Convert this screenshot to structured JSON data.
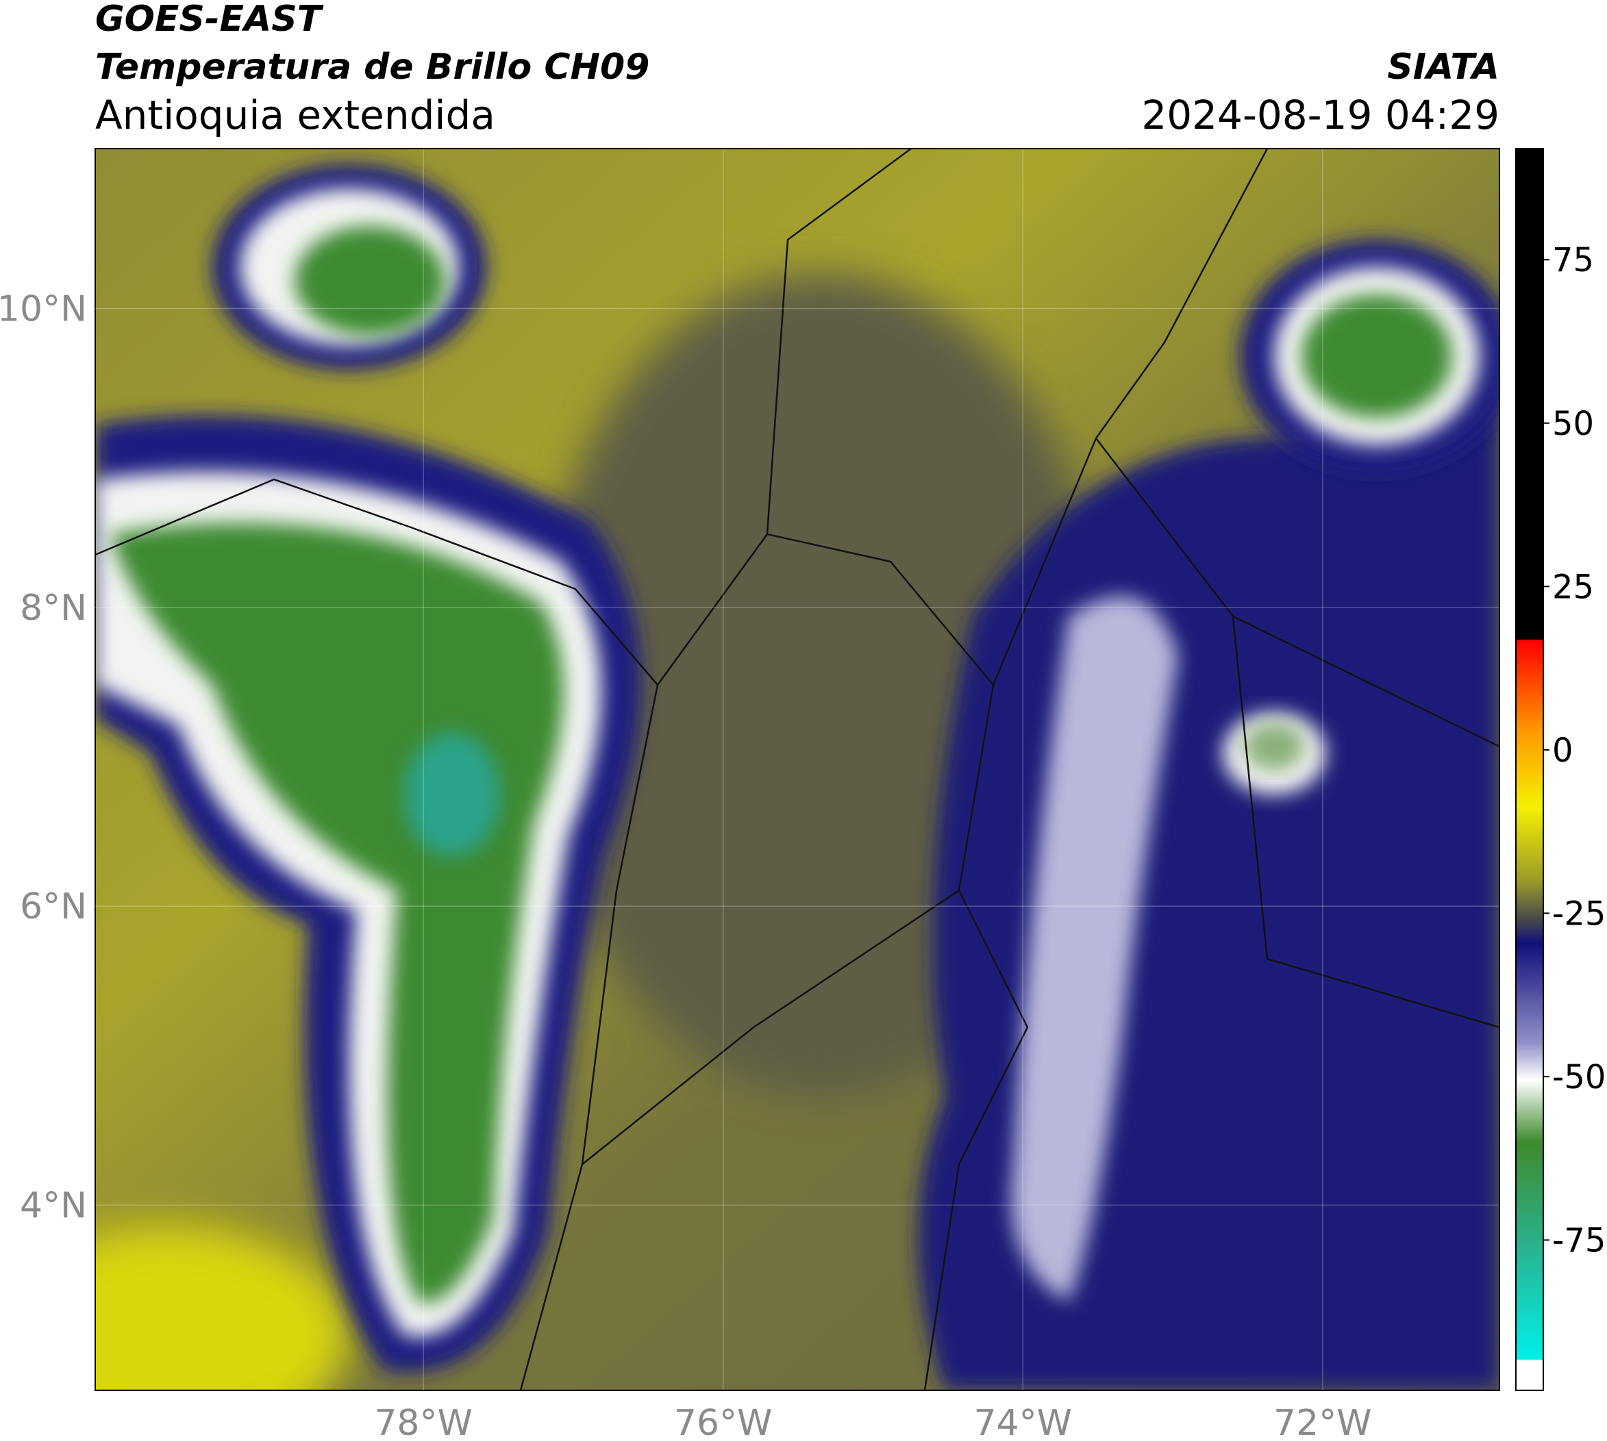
{
  "header": {
    "title": "GOES-EAST",
    "subtitle": "Temperatura de Brillo CH09",
    "region": "Antioquia extendida",
    "source": "SIATA",
    "datetime": "2024-08-19 04:29"
  },
  "map": {
    "lon_range": [
      -80.19,
      -70.82
    ],
    "lat_range": [
      2.76,
      11.07
    ],
    "lon_ticks": [
      {
        "value": -78,
        "label": "78°W"
      },
      {
        "value": -76,
        "label": "76°W"
      },
      {
        "value": -74,
        "label": "74°W"
      },
      {
        "value": -72,
        "label": "72°W"
      }
    ],
    "lat_ticks": [
      {
        "value": 10,
        "label": "10°N"
      },
      {
        "value": 8,
        "label": "8°N"
      },
      {
        "value": 6,
        "label": "6°N"
      },
      {
        "value": 4,
        "label": "4°N"
      }
    ]
  },
  "colorbar": {
    "range": [
      -98,
      92
    ],
    "ticks": [
      75,
      50,
      25,
      0,
      -25,
      -50,
      -75
    ]
  }
}
